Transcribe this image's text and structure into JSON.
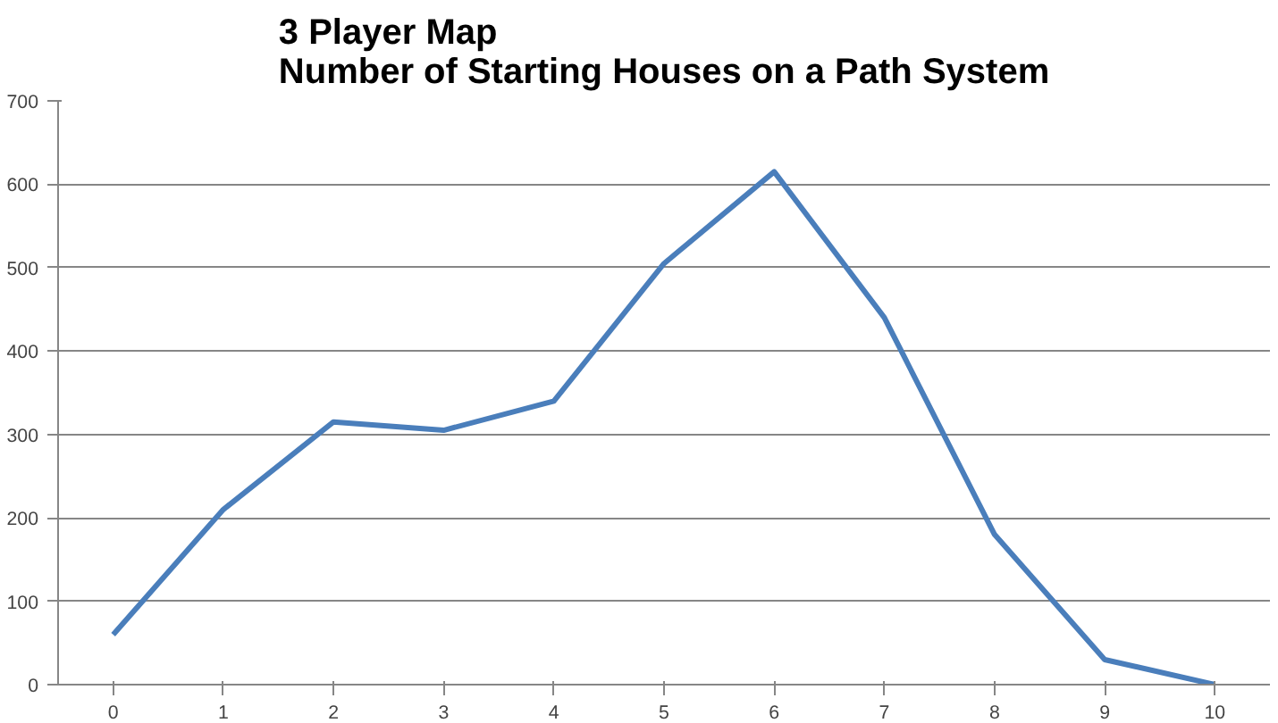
{
  "chart_data": {
    "type": "line",
    "title": "3 Player Map\nNumber of Starting Houses on a Path System",
    "categories": [
      "0",
      "1",
      "2",
      "3",
      "4",
      "5",
      "6",
      "7",
      "8",
      "9",
      "10"
    ],
    "series": [
      {
        "color": "#4a7ebb",
        "values": [
          60,
          210,
          315,
          305,
          340,
          505,
          615,
          440,
          180,
          30,
          0
        ]
      }
    ],
    "ylim": [
      0,
      700
    ],
    "yticks": [
      0,
      100,
      200,
      300,
      400,
      500,
      600,
      700
    ],
    "grid": "y",
    "marker": "none",
    "line_style": "solid"
  }
}
